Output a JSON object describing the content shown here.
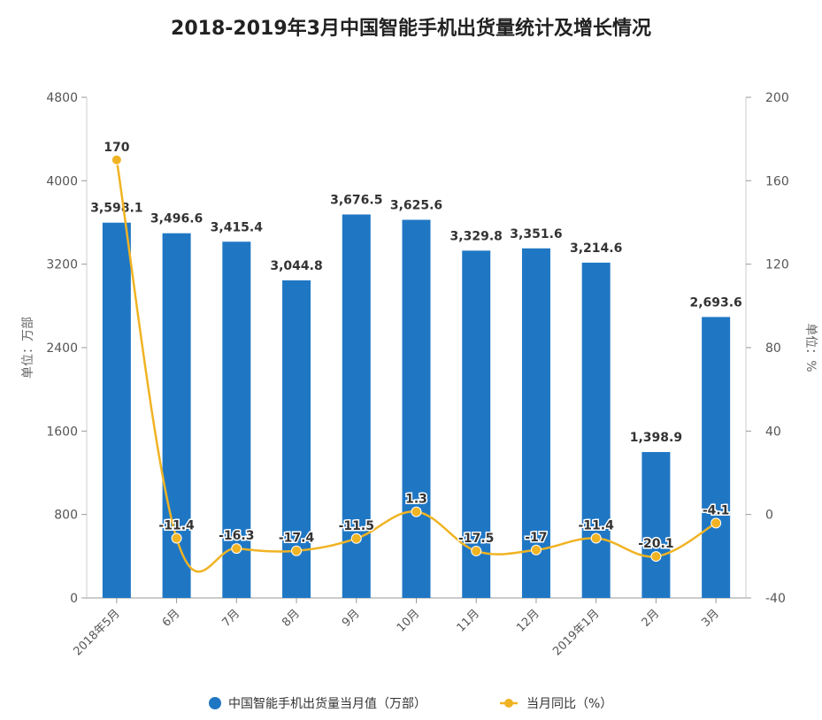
{
  "chart_data": {
    "type": "bar",
    "title": "2018-2019年3月中国智能手机出货量统计及增长情况",
    "categories": [
      "2018年5月",
      "6月",
      "7月",
      "8月",
      "9月",
      "10月",
      "11月",
      "12月",
      "2019年1月",
      "2月",
      "3月"
    ],
    "series": [
      {
        "name": "中国智能手机出货量当月值（万部）",
        "kind": "bar",
        "axis": "left",
        "color": "#1f77c4",
        "values": [
          3598.1,
          3496.6,
          3415.4,
          3044.8,
          3676.5,
          3625.6,
          3329.8,
          3351.6,
          3214.6,
          1398.9,
          2693.6
        ],
        "labels": [
          "3,598.1",
          "3,496.6",
          "3,415.4",
          "3,044.8",
          "3,676.5",
          "3,625.6",
          "3,329.8",
          "3,351.6",
          "3,214.6",
          "1,398.9",
          "2,693.6"
        ]
      },
      {
        "name": "当月同比（%）",
        "kind": "line",
        "axis": "right",
        "color": "#f0b323",
        "values": [
          170,
          -11.4,
          -16.3,
          -17.4,
          -11.5,
          1.3,
          -17.5,
          -17,
          -11.4,
          -20.1,
          -4.1
        ],
        "labels": [
          "170",
          "-11.4",
          "-16.3",
          "-17.4",
          "-11.5",
          "1.3",
          "-17.5",
          "-17",
          "-11.4",
          "-20.1",
          "-4.1"
        ]
      }
    ],
    "y_left": {
      "label": "单位：万部",
      "min": 0,
      "max": 4800,
      "ticks": [
        0,
        800,
        1600,
        2400,
        3200,
        4000,
        4800
      ]
    },
    "y_right": {
      "label": "单位：%",
      "min": -40,
      "max": 200,
      "ticks": [
        -40,
        0,
        40,
        80,
        120,
        160,
        200
      ]
    },
    "grid": false,
    "legend_position": "bottom"
  }
}
